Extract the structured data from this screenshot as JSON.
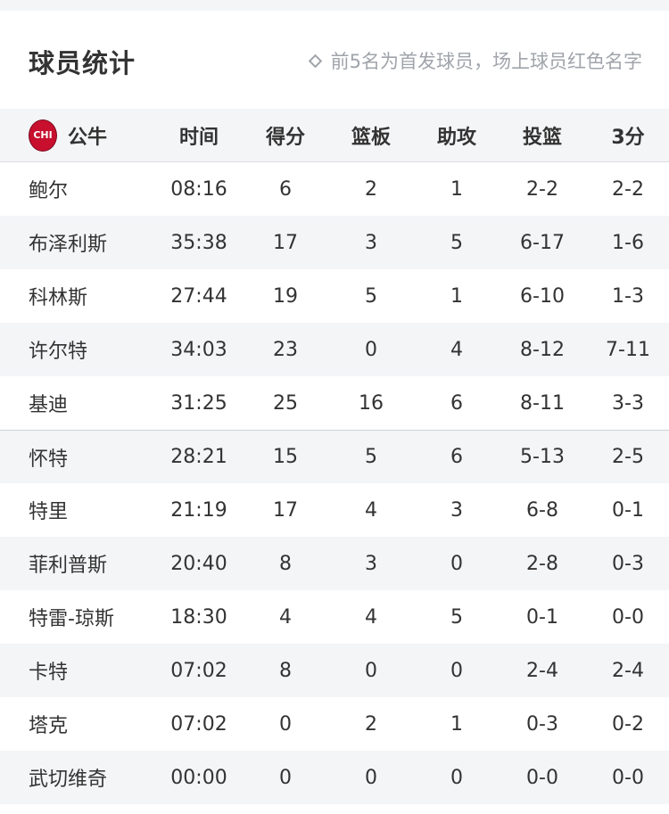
{
  "title": "球员统计",
  "note": "前5名为首发球员，场上球员红色名字",
  "team": {
    "logo_text": "CHI",
    "name": "公牛",
    "color": "#c8102e"
  },
  "columns": [
    "时间",
    "得分",
    "篮板",
    "助攻",
    "投篮",
    "3分"
  ],
  "players": [
    {
      "name": "鲍尔",
      "time": "08:16",
      "pts": "6",
      "reb": "2",
      "ast": "1",
      "fg": "2-2",
      "tp": "2-2"
    },
    {
      "name": "布泽利斯",
      "time": "35:38",
      "pts": "17",
      "reb": "3",
      "ast": "5",
      "fg": "6-17",
      "tp": "1-6"
    },
    {
      "name": "科林斯",
      "time": "27:44",
      "pts": "19",
      "reb": "5",
      "ast": "1",
      "fg": "6-10",
      "tp": "1-3"
    },
    {
      "name": "许尔特",
      "time": "34:03",
      "pts": "23",
      "reb": "0",
      "ast": "4",
      "fg": "8-12",
      "tp": "7-11"
    },
    {
      "name": "基迪",
      "time": "31:25",
      "pts": "25",
      "reb": "16",
      "ast": "6",
      "fg": "8-11",
      "tp": "3-3"
    },
    {
      "name": "怀特",
      "time": "28:21",
      "pts": "15",
      "reb": "5",
      "ast": "6",
      "fg": "5-13",
      "tp": "2-5"
    },
    {
      "name": "特里",
      "time": "21:19",
      "pts": "17",
      "reb": "4",
      "ast": "3",
      "fg": "6-8",
      "tp": "0-1"
    },
    {
      "name": "菲利普斯",
      "time": "20:40",
      "pts": "8",
      "reb": "3",
      "ast": "0",
      "fg": "2-8",
      "tp": "0-3"
    },
    {
      "name": "特雷-琼斯",
      "time": "18:30",
      "pts": "4",
      "reb": "4",
      "ast": "5",
      "fg": "0-1",
      "tp": "0-0"
    },
    {
      "name": "卡特",
      "time": "07:02",
      "pts": "8",
      "reb": "0",
      "ast": "0",
      "fg": "2-4",
      "tp": "2-4"
    },
    {
      "name": "塔克",
      "time": "07:02",
      "pts": "0",
      "reb": "2",
      "ast": "1",
      "fg": "0-3",
      "tp": "0-2"
    },
    {
      "name": "武切维奇",
      "time": "00:00",
      "pts": "0",
      "reb": "0",
      "ast": "0",
      "fg": "0-0",
      "tp": "0-0"
    }
  ]
}
